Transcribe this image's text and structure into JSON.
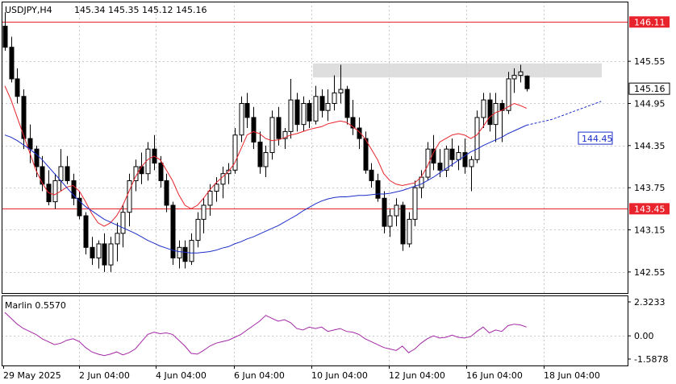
{
  "header": {
    "symbol": "USDJPY,H4",
    "ohlc": "145.34 145.35 145.12 145.16"
  },
  "indicator": {
    "label": "Marlin 0.5570"
  },
  "colors": {
    "bull_candle": "#ffffff",
    "bear_candle": "#000000",
    "ma_fast": "#e8232b",
    "ma_slow": "#1b2ec9",
    "oscillator": "#a327a6",
    "level_line": "#e8232b",
    "zone": "#d8d8d8",
    "grid": "#c9c9c9",
    "forecast_label": "#1b2ec9"
  },
  "chart_data": [
    {
      "type": "candlestick",
      "title": "USDJPY,H4",
      "ylim": [
        142.25,
        146.4
      ],
      "y_ticks": [
        "146.11",
        "145.55",
        "145.16",
        "144.95",
        "144.35",
        "143.75",
        "143.45",
        "143.15",
        "142.55"
      ],
      "x_ticks": [
        "29 May 2025",
        "2 Jun 04:00",
        "4 Jun 04:00",
        "6 Jun 04:00",
        "10 Jun 04:00",
        "12 Jun 04:00",
        "16 Jun 04:00",
        "18 Jun 04:00"
      ],
      "current_price": 145.16,
      "levels": [
        {
          "label": "146.11",
          "value": 146.11
        },
        {
          "label": "143.45",
          "value": 143.45
        }
      ],
      "resistance_zone": [
        145.32,
        145.52
      ],
      "forecast": {
        "label": "144.45",
        "value": 144.45
      },
      "candles": [
        [
          146.05,
          146.25,
          145.7,
          145.75
        ],
        [
          145.75,
          145.9,
          145.25,
          145.3
        ],
        [
          145.3,
          145.45,
          144.95,
          145.05
        ],
        [
          145.05,
          145.15,
          144.3,
          144.45
        ],
        [
          144.45,
          144.65,
          144.1,
          144.3
        ],
        [
          144.3,
          144.35,
          143.9,
          144.05
        ],
        [
          144.05,
          144.2,
          143.7,
          143.8
        ],
        [
          143.8,
          144.0,
          143.5,
          143.55
        ],
        [
          143.55,
          143.95,
          143.45,
          143.85
        ],
        [
          143.85,
          144.3,
          143.7,
          144.05
        ],
        [
          144.05,
          144.2,
          143.8,
          143.85
        ],
        [
          143.85,
          143.95,
          143.5,
          143.6
        ],
        [
          143.6,
          143.7,
          143.3,
          143.35
        ],
        [
          143.35,
          143.4,
          142.8,
          142.9
        ],
        [
          142.9,
          143.05,
          142.65,
          142.75
        ],
        [
          142.75,
          143.0,
          142.6,
          142.95
        ],
        [
          142.95,
          143.1,
          142.55,
          142.65
        ],
        [
          142.65,
          143.05,
          142.55,
          142.95
        ],
        [
          142.95,
          143.25,
          142.7,
          143.1
        ],
        [
          143.1,
          143.5,
          142.9,
          143.4
        ],
        [
          143.4,
          143.95,
          143.2,
          143.85
        ],
        [
          143.85,
          144.15,
          143.7,
          144.05
        ],
        [
          144.05,
          144.25,
          143.8,
          143.95
        ],
        [
          143.95,
          144.4,
          143.85,
          144.3
        ],
        [
          144.3,
          144.5,
          144.0,
          144.1
        ],
        [
          144.1,
          144.2,
          143.75,
          143.85
        ],
        [
          143.85,
          143.95,
          143.4,
          143.5
        ],
        [
          143.5,
          143.55,
          142.65,
          142.75
        ],
        [
          142.75,
          143.0,
          142.6,
          142.9
        ],
        [
          142.9,
          143.0,
          142.6,
          142.7
        ],
        [
          142.7,
          143.1,
          142.65,
          143.0
        ],
        [
          143.0,
          143.4,
          142.9,
          143.3
        ],
        [
          143.3,
          143.6,
          143.1,
          143.5
        ],
        [
          143.5,
          143.8,
          143.35,
          143.7
        ],
        [
          143.7,
          143.9,
          143.55,
          143.8
        ],
        [
          143.8,
          144.05,
          143.6,
          143.95
        ],
        [
          143.95,
          144.1,
          143.8,
          144.0
        ],
        [
          144.0,
          144.6,
          143.95,
          144.5
        ],
        [
          144.5,
          145.05,
          144.4,
          144.95
        ],
        [
          144.95,
          145.1,
          144.6,
          144.75
        ],
        [
          144.75,
          144.9,
          144.3,
          144.4
        ],
        [
          144.4,
          144.55,
          143.95,
          144.05
        ],
        [
          144.05,
          144.35,
          143.9,
          144.25
        ],
        [
          144.25,
          144.85,
          144.15,
          144.75
        ],
        [
          144.75,
          144.9,
          144.35,
          144.45
        ],
        [
          144.45,
          144.6,
          144.3,
          144.55
        ],
        [
          144.55,
          145.3,
          144.45,
          145.0
        ],
        [
          145.0,
          145.1,
          144.55,
          144.65
        ],
        [
          144.65,
          145.05,
          144.55,
          144.95
        ],
        [
          144.95,
          145.0,
          144.6,
          144.7
        ],
        [
          144.7,
          145.2,
          144.65,
          145.05
        ],
        [
          145.05,
          145.15,
          144.75,
          144.85
        ],
        [
          144.85,
          145.15,
          144.7,
          144.95
        ],
        [
          144.95,
          145.35,
          144.85,
          145.1
        ],
        [
          145.1,
          145.5,
          144.95,
          145.15
        ],
        [
          145.15,
          145.2,
          144.65,
          144.75
        ],
        [
          144.75,
          145.0,
          144.5,
          144.6
        ],
        [
          144.6,
          144.75,
          144.3,
          144.45
        ],
        [
          144.45,
          144.55,
          143.95,
          144.0
        ],
        [
          144.0,
          144.1,
          143.75,
          143.85
        ],
        [
          143.85,
          143.95,
          143.55,
          143.6
        ],
        [
          143.6,
          143.7,
          143.1,
          143.2
        ],
        [
          143.2,
          143.45,
          143.05,
          143.35
        ],
        [
          143.35,
          143.6,
          143.2,
          143.5
        ],
        [
          143.5,
          143.55,
          142.85,
          142.95
        ],
        [
          142.95,
          143.4,
          142.9,
          143.3
        ],
        [
          143.3,
          143.85,
          143.2,
          143.75
        ],
        [
          143.75,
          144.0,
          143.6,
          143.9
        ],
        [
          143.9,
          144.4,
          143.85,
          144.3
        ],
        [
          144.3,
          144.5,
          144.0,
          144.1
        ],
        [
          144.1,
          144.3,
          143.9,
          144.0
        ],
        [
          144.0,
          144.35,
          143.9,
          144.3
        ],
        [
          144.3,
          144.45,
          144.05,
          144.15
        ],
        [
          144.15,
          144.35,
          144.0,
          144.25
        ],
        [
          144.25,
          144.45,
          143.95,
          144.05
        ],
        [
          144.05,
          144.2,
          143.7,
          144.15
        ],
        [
          144.15,
          144.85,
          144.1,
          144.75
        ],
        [
          144.75,
          145.1,
          144.6,
          145.0
        ],
        [
          145.0,
          145.1,
          144.55,
          144.65
        ],
        [
          144.65,
          145.1,
          144.4,
          144.95
        ],
        [
          144.95,
          145.0,
          144.4,
          144.85
        ],
        [
          144.85,
          145.4,
          144.8,
          145.3
        ],
        [
          145.3,
          145.45,
          145.1,
          145.35
        ],
        [
          145.35,
          145.5,
          145.25,
          145.4
        ],
        [
          145.34,
          145.35,
          145.12,
          145.16
        ]
      ],
      "ma_fast": [
        145.2,
        145.0,
        144.75,
        144.5,
        144.25,
        144.0,
        143.82,
        143.68,
        143.65,
        143.7,
        143.76,
        143.78,
        143.7,
        143.55,
        143.38,
        143.25,
        143.2,
        143.25,
        143.35,
        143.5,
        143.7,
        143.9,
        144.05,
        144.15,
        144.2,
        144.15,
        144.0,
        143.85,
        143.65,
        143.5,
        143.45,
        143.5,
        143.6,
        143.72,
        143.82,
        143.9,
        143.98,
        144.1,
        144.3,
        144.5,
        144.55,
        144.52,
        144.45,
        144.42,
        144.43,
        144.46,
        144.5,
        144.52,
        144.55,
        144.58,
        144.6,
        144.62,
        144.66,
        144.68,
        144.7,
        144.68,
        144.62,
        144.55,
        144.45,
        144.3,
        144.15,
        143.95,
        143.85,
        143.8,
        143.78,
        143.8,
        143.82,
        143.9,
        144.05,
        144.25,
        144.4,
        144.45,
        144.5,
        144.52,
        144.5,
        144.45,
        144.5,
        144.62,
        144.75,
        144.82,
        144.85,
        144.9,
        144.95,
        144.92,
        144.88
      ],
      "ma_slow": [
        144.5,
        144.47,
        144.42,
        144.36,
        144.3,
        144.23,
        144.15,
        144.05,
        143.95,
        143.85,
        143.75,
        143.65,
        143.56,
        143.48,
        143.42,
        143.36,
        143.3,
        143.26,
        143.22,
        143.18,
        143.14,
        143.1,
        143.05,
        143.0,
        142.96,
        142.92,
        142.89,
        142.86,
        142.84,
        142.83,
        142.82,
        142.82,
        142.83,
        142.84,
        142.86,
        142.89,
        142.91,
        142.95,
        142.98,
        143.02,
        143.05,
        143.09,
        143.13,
        143.17,
        143.21,
        143.26,
        143.31,
        143.36,
        143.42,
        143.47,
        143.52,
        143.56,
        143.59,
        143.61,
        143.62,
        143.62,
        143.63,
        143.64,
        143.64,
        143.65,
        143.66,
        143.66,
        143.67,
        143.69,
        143.71,
        143.74,
        143.77,
        143.8,
        143.85,
        143.9,
        143.96,
        144.02,
        144.08,
        144.14,
        144.2,
        144.26,
        144.3,
        144.35,
        144.39,
        144.43,
        144.47,
        144.52,
        144.56,
        144.6,
        144.64
      ],
      "forecast_path": [
        [
          84,
          144.64
        ],
        [
          88,
          144.72
        ],
        [
          92,
          144.85
        ],
        [
          96,
          144.98
        ]
      ]
    },
    {
      "type": "line",
      "title": "Marlin 0.5570",
      "series_name": "",
      "ylim": [
        -1.5878,
        2.3233
      ],
      "y_ticks": [
        "2.3233",
        "0.00",
        "-1.5878"
      ],
      "values": [
        1.6,
        1.2,
        0.8,
        0.5,
        0.3,
        0.1,
        -0.2,
        -0.4,
        -0.6,
        -0.5,
        -0.3,
        -0.2,
        -0.4,
        -0.8,
        -1.1,
        -1.25,
        -1.35,
        -1.25,
        -1.1,
        -1.3,
        -1.15,
        -0.9,
        -0.4,
        0.1,
        0.25,
        0.15,
        0.2,
        0.1,
        -0.3,
        -0.7,
        -1.2,
        -1.25,
        -1.0,
        -0.7,
        -0.5,
        -0.4,
        -0.3,
        -0.1,
        0.1,
        0.4,
        0.7,
        1.0,
        1.4,
        1.2,
        1.0,
        1.1,
        0.9,
        0.5,
        0.4,
        0.6,
        0.5,
        0.6,
        0.3,
        0.4,
        0.5,
        0.3,
        0.25,
        0.1,
        -0.2,
        -0.4,
        -0.6,
        -0.8,
        -0.9,
        -1.0,
        -0.7,
        -1.15,
        -0.9,
        -0.5,
        -0.2,
        0.0,
        -0.15,
        -0.1,
        0.05,
        -0.1,
        -0.15,
        -0.05,
        0.3,
        0.6,
        0.2,
        0.4,
        0.3,
        0.7,
        0.8,
        0.75,
        0.6
      ]
    }
  ]
}
